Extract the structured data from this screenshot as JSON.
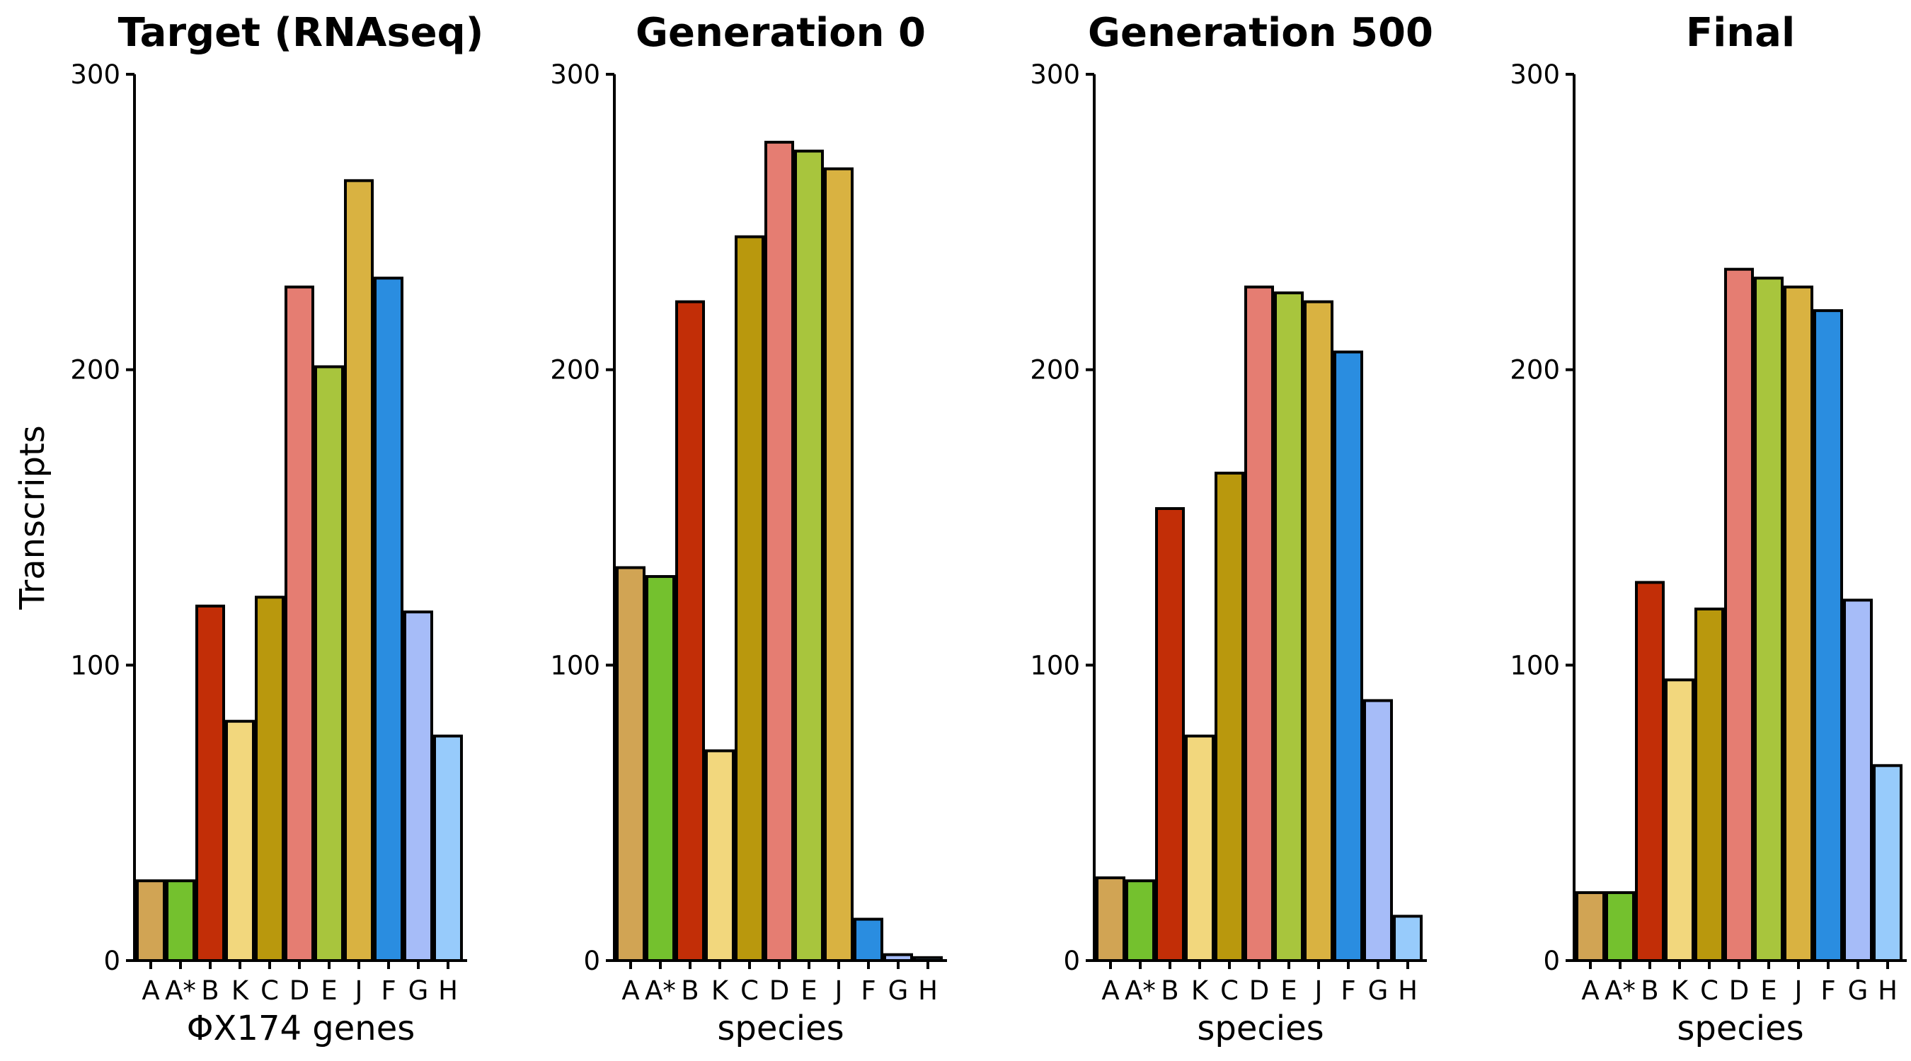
{
  "chart_data": [
    {
      "type": "bar",
      "title": "Target (RNAseq)",
      "xlabel": "ΦX174 genes",
      "ylabel": "Transcripts",
      "categories": [
        "A",
        "A*",
        "B",
        "K",
        "C",
        "D",
        "E",
        "J",
        "F",
        "G",
        "H"
      ],
      "values": [
        27,
        27,
        120,
        81,
        123,
        228,
        201,
        264,
        231,
        118,
        76
      ],
      "ylim": [
        0,
        300
      ],
      "yticks": [
        0,
        100,
        200,
        300
      ],
      "grid": false
    },
    {
      "type": "bar",
      "title": "Generation 0",
      "xlabel": "species",
      "ylabel": "",
      "categories": [
        "A",
        "A*",
        "B",
        "K",
        "C",
        "D",
        "E",
        "J",
        "F",
        "G",
        "H"
      ],
      "values": [
        133,
        130,
        223,
        71,
        245,
        277,
        274,
        268,
        14,
        2,
        1
      ],
      "ylim": [
        0,
        300
      ],
      "yticks": [
        0,
        100,
        200,
        300
      ],
      "grid": false
    },
    {
      "type": "bar",
      "title": "Generation 500",
      "xlabel": "species",
      "ylabel": "",
      "categories": [
        "A",
        "A*",
        "B",
        "K",
        "C",
        "D",
        "E",
        "J",
        "F",
        "G",
        "H"
      ],
      "values": [
        28,
        27,
        153,
        76,
        165,
        228,
        226,
        223,
        206,
        88,
        15
      ],
      "ylim": [
        0,
        300
      ],
      "yticks": [
        0,
        100,
        200,
        300
      ],
      "grid": false
    },
    {
      "type": "bar",
      "title": "Final",
      "xlabel": "species",
      "ylabel": "",
      "categories": [
        "A",
        "A*",
        "B",
        "K",
        "C",
        "D",
        "E",
        "J",
        "F",
        "G",
        "H"
      ],
      "values": [
        23,
        23,
        128,
        95,
        119,
        234,
        231,
        228,
        220,
        122,
        66
      ],
      "ylim": [
        0,
        300
      ],
      "yticks": [
        0,
        100,
        200,
        300
      ],
      "grid": false
    }
  ],
  "category_colors": {
    "A": "#D1A454",
    "A*": "#74C12E",
    "B": "#C22E07",
    "K": "#F2D77D",
    "C": "#B9980D",
    "D": "#E57D72",
    "E": "#A8C53D",
    "J": "#D9B241",
    "F": "#2A8DE0",
    "G": "#A6BCF8",
    "H": "#97CBFB"
  }
}
